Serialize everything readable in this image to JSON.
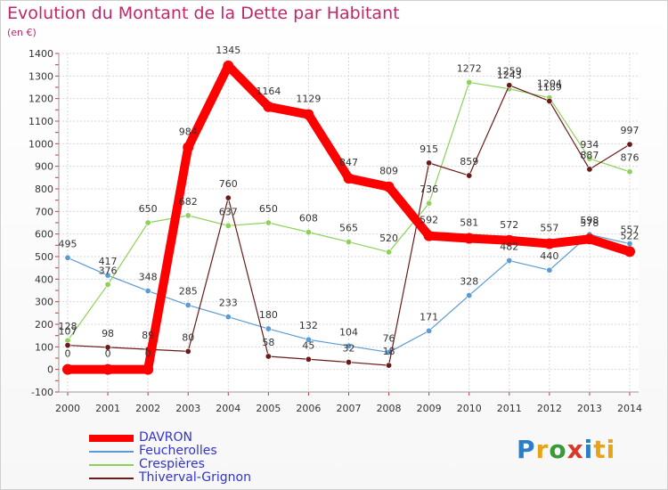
{
  "title": "Evolution du Montant de la Dette par Habitant",
  "subtitle": "(en €)",
  "logo": "Proxiti",
  "chart_data": {
    "type": "line",
    "title": "Evolution du Montant de la Dette par Habitant",
    "subtitle": "(en €)",
    "x": [
      "2000",
      "2001",
      "2002",
      "2003",
      "2004",
      "2005",
      "2006",
      "2007",
      "2008",
      "2009",
      "2010",
      "2011",
      "2012",
      "2013",
      "2014"
    ],
    "ylim": [
      -100,
      1400
    ],
    "yticks": [
      -100,
      0,
      100,
      200,
      300,
      400,
      500,
      600,
      700,
      800,
      900,
      1000,
      1100,
      1200,
      1300,
      1400
    ],
    "grid": true,
    "legend_position": "bottom-left",
    "series": [
      {
        "name": "DAVRON",
        "color": "#ff0000",
        "values": [
          0,
          0,
          0,
          984,
          1345,
          1164,
          1129,
          847,
          809,
          592,
          581,
          572,
          557,
          578,
          522
        ]
      },
      {
        "name": "Feucherolles",
        "color": "#5b9bd5",
        "values": [
          495,
          417,
          348,
          285,
          233,
          180,
          132,
          104,
          76,
          171,
          328,
          482,
          440,
          598,
          557
        ]
      },
      {
        "name": "Crespières",
        "color": "#8ed15a",
        "values": [
          128,
          376,
          650,
          682,
          637,
          650,
          608,
          565,
          520,
          736,
          1272,
          1243,
          1204,
          934,
          876
        ]
      },
      {
        "name": "Thiverval-Grignon",
        "color": "#6b1a1a",
        "values": [
          107,
          98,
          89,
          80,
          760,
          58,
          45,
          32,
          18,
          915,
          859,
          1259,
          1189,
          887,
          997
        ]
      }
    ]
  }
}
